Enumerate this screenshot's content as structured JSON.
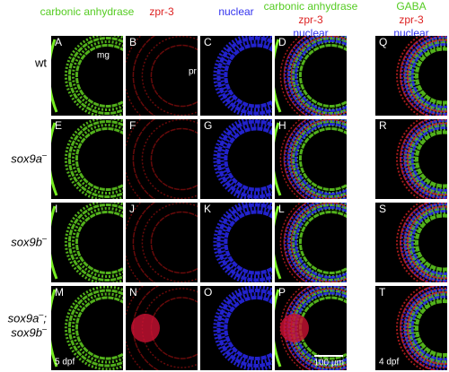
{
  "columns": [
    {
      "header": [
        {
          "text": "carbonic anhydrase",
          "color": "#55cc22"
        }
      ]
    },
    {
      "header": [
        {
          "text": "zpr-3",
          "color": "#dd2222"
        }
      ]
    },
    {
      "header": [
        {
          "text": "nuclear",
          "color": "#3333ee"
        }
      ]
    },
    {
      "header": [
        {
          "text": "carbonic anhydrase",
          "color": "#55cc22"
        },
        {
          "text": "zpr-3",
          "color": "#dd2222"
        },
        {
          "text": "nuclear",
          "color": "#3333ee"
        }
      ]
    },
    {
      "header": [
        {
          "text": "GABA",
          "color": "#55cc22"
        },
        {
          "text": "zpr-3",
          "color": "#dd2222"
        },
        {
          "text": "nuclear",
          "color": "#3333ee"
        }
      ]
    }
  ],
  "rows": [
    {
      "italic": false,
      "lines": [
        {
          "gene": "wt"
        }
      ]
    },
    {
      "italic": true,
      "lines": [
        {
          "gene": "sox9a",
          "sup": "–"
        }
      ]
    },
    {
      "italic": true,
      "lines": [
        {
          "gene": "sox9b",
          "sup": "–"
        }
      ]
    },
    {
      "italic": true,
      "lines": [
        {
          "gene": "sox9a",
          "sup": "–",
          "tail": ";"
        },
        {
          "gene": "sox9b",
          "sup": "–"
        }
      ]
    }
  ],
  "panels": [
    [
      "A",
      "B",
      "C",
      "D",
      "Q"
    ],
    [
      "E",
      "F",
      "G",
      "H",
      "R"
    ],
    [
      "I",
      "J",
      "K",
      "L",
      "S"
    ],
    [
      "M",
      "N",
      "O",
      "P",
      "T"
    ]
  ],
  "annotations": {
    "mg": "mg",
    "pr": "pr",
    "age_left": "5 dpf",
    "scale": "100 µm",
    "age_right": "4 dpf"
  }
}
